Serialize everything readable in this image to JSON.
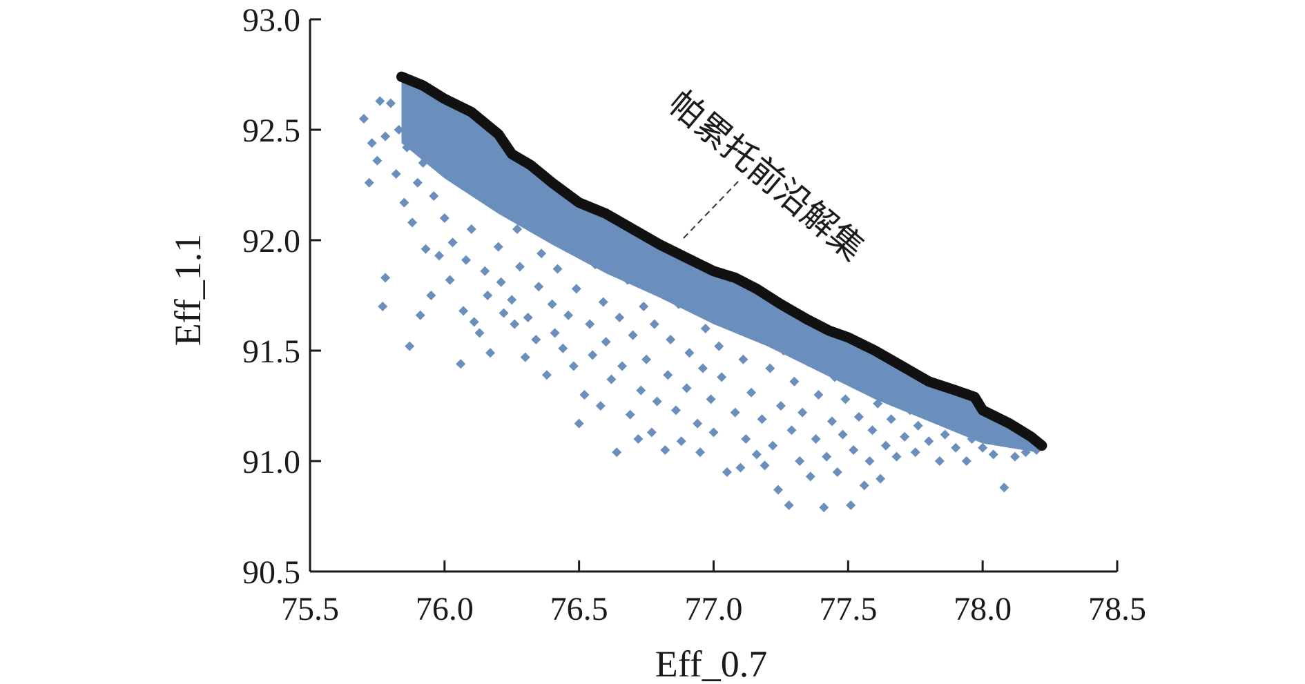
{
  "chart_data": {
    "type": "scatter",
    "xlabel": "Eff_0.7",
    "ylabel": "Eff_1.1",
    "xlim": [
      75.5,
      78.5
    ],
    "ylim": [
      90.5,
      93.0
    ],
    "xticks": [
      75.5,
      76.0,
      76.5,
      77.0,
      77.5,
      78.0,
      78.5
    ],
    "yticks": [
      90.5,
      91.0,
      91.5,
      92.0,
      92.5,
      93.0
    ],
    "xtick_labels": [
      "75.5",
      "76.0",
      "76.5",
      "77.0",
      "77.5",
      "78.0",
      "78.5"
    ],
    "ytick_labels": [
      "90.5",
      "91.0",
      "91.5",
      "92.0",
      "92.5",
      "93.0"
    ],
    "grid": false,
    "legend": "none",
    "annotation": "帕累托前沿解集",
    "colors": {
      "scatter": "#6b8fbd",
      "front": "#111111",
      "axis": "#1a1a1a"
    },
    "series": [
      {
        "kind": "scatter",
        "marker": "diamond",
        "points": [
          [
            75.7,
            92.55
          ],
          [
            75.72,
            92.26
          ],
          [
            75.73,
            92.44
          ],
          [
            75.75,
            92.36
          ],
          [
            75.76,
            92.63
          ],
          [
            75.77,
            91.7
          ],
          [
            75.78,
            91.83
          ],
          [
            75.78,
            92.47
          ],
          [
            75.8,
            92.62
          ],
          [
            75.82,
            92.3
          ],
          [
            75.83,
            92.5
          ],
          [
            75.85,
            92.17
          ],
          [
            75.86,
            92.42
          ],
          [
            75.87,
            91.52
          ],
          [
            75.88,
            92.08
          ],
          [
            75.9,
            92.26
          ],
          [
            75.91,
            91.66
          ],
          [
            75.92,
            92.35
          ],
          [
            75.93,
            91.96
          ],
          [
            75.95,
            91.75
          ],
          [
            75.96,
            92.2
          ],
          [
            75.98,
            91.93
          ],
          [
            75.99,
            92.47
          ],
          [
            76.0,
            92.1
          ],
          [
            76.02,
            91.82
          ],
          [
            76.03,
            91.99
          ],
          [
            76.05,
            92.3
          ],
          [
            76.06,
            91.44
          ],
          [
            76.07,
            91.68
          ],
          [
            76.08,
            91.91
          ],
          [
            76.1,
            92.05
          ],
          [
            76.11,
            91.63
          ],
          [
            76.12,
            92.38
          ],
          [
            76.13,
            91.58
          ],
          [
            76.15,
            91.86
          ],
          [
            76.16,
            91.75
          ],
          [
            76.17,
            91.49
          ],
          [
            76.18,
            92.18
          ],
          [
            76.2,
            91.97
          ],
          [
            76.21,
            91.81
          ],
          [
            76.22,
            91.67
          ],
          [
            76.23,
            92.27
          ],
          [
            76.25,
            91.73
          ],
          [
            76.26,
            91.62
          ],
          [
            76.27,
            92.05
          ],
          [
            76.28,
            91.88
          ],
          [
            76.3,
            91.47
          ],
          [
            76.31,
            91.65
          ],
          [
            76.32,
            92.15
          ],
          [
            76.34,
            91.55
          ],
          [
            76.35,
            91.79
          ],
          [
            76.36,
            91.94
          ],
          [
            76.38,
            91.39
          ],
          [
            76.39,
            92.2
          ],
          [
            76.4,
            91.71
          ],
          [
            76.41,
            91.58
          ],
          [
            76.42,
            91.87
          ],
          [
            76.44,
            91.51
          ],
          [
            76.45,
            92.03
          ],
          [
            76.46,
            91.66
          ],
          [
            76.48,
            91.43
          ],
          [
            76.49,
            91.78
          ],
          [
            76.5,
            91.17
          ],
          [
            76.51,
            92.0
          ],
          [
            76.52,
            91.3
          ],
          [
            76.54,
            91.62
          ],
          [
            76.55,
            91.48
          ],
          [
            76.56,
            91.89
          ],
          [
            76.58,
            91.25
          ],
          [
            76.59,
            91.72
          ],
          [
            76.6,
            91.54
          ],
          [
            76.61,
            91.97
          ],
          [
            76.62,
            91.37
          ],
          [
            76.64,
            91.04
          ],
          [
            76.65,
            91.65
          ],
          [
            76.66,
            91.43
          ],
          [
            76.68,
            91.82
          ],
          [
            76.69,
            91.21
          ],
          [
            76.7,
            91.57
          ],
          [
            76.72,
            91.1
          ],
          [
            76.73,
            91.32
          ],
          [
            76.74,
            91.7
          ],
          [
            76.75,
            91.46
          ],
          [
            76.77,
            91.13
          ],
          [
            76.78,
            91.62
          ],
          [
            76.79,
            91.27
          ],
          [
            76.8,
            91.84
          ],
          [
            76.82,
            91.05
          ],
          [
            76.83,
            91.39
          ],
          [
            76.84,
            91.55
          ],
          [
            76.86,
            91.23
          ],
          [
            76.87,
            91.71
          ],
          [
            76.88,
            91.09
          ],
          [
            76.9,
            91.33
          ],
          [
            76.91,
            91.49
          ],
          [
            76.92,
            91.76
          ],
          [
            76.94,
            91.17
          ],
          [
            76.95,
            91.04
          ],
          [
            76.96,
            91.42
          ],
          [
            76.97,
            91.6
          ],
          [
            76.99,
            91.28
          ],
          [
            77.0,
            91.13
          ],
          [
            77.02,
            91.52
          ],
          [
            77.03,
            91.38
          ],
          [
            77.05,
            90.95
          ],
          [
            77.06,
            91.66
          ],
          [
            77.08,
            91.22
          ],
          [
            77.1,
            90.97
          ],
          [
            77.11,
            91.46
          ],
          [
            77.12,
            91.1
          ],
          [
            77.14,
            91.31
          ],
          [
            77.15,
            91.57
          ],
          [
            77.16,
            91.03
          ],
          [
            77.18,
            91.19
          ],
          [
            77.19,
            90.98
          ],
          [
            77.21,
            91.42
          ],
          [
            77.22,
            91.07
          ],
          [
            77.24,
            90.87
          ],
          [
            77.25,
            91.25
          ],
          [
            77.26,
            91.5
          ],
          [
            77.28,
            90.8
          ],
          [
            77.29,
            91.14
          ],
          [
            77.3,
            91.36
          ],
          [
            77.32,
            91.0
          ],
          [
            77.33,
            91.22
          ],
          [
            77.35,
            91.45
          ],
          [
            77.36,
            90.93
          ],
          [
            77.38,
            91.1
          ],
          [
            77.39,
            91.3
          ],
          [
            77.41,
            90.79
          ],
          [
            77.42,
            91.02
          ],
          [
            77.44,
            91.18
          ],
          [
            77.45,
            91.38
          ],
          [
            77.46,
            90.95
          ],
          [
            77.48,
            91.12
          ],
          [
            77.49,
            91.28
          ],
          [
            77.51,
            90.8
          ],
          [
            77.52,
            91.05
          ],
          [
            77.54,
            91.2
          ],
          [
            77.55,
            91.34
          ],
          [
            77.56,
            90.89
          ],
          [
            77.58,
            91.0
          ],
          [
            77.59,
            91.14
          ],
          [
            77.61,
            91.26
          ],
          [
            77.62,
            90.92
          ],
          [
            77.64,
            91.07
          ],
          [
            77.66,
            91.19
          ],
          [
            77.68,
            91.02
          ],
          [
            77.69,
            91.3
          ],
          [
            77.71,
            91.11
          ],
          [
            77.73,
            91.23
          ],
          [
            77.75,
            91.04
          ],
          [
            77.76,
            91.16
          ],
          [
            77.78,
            91.27
          ],
          [
            77.8,
            91.09
          ],
          [
            77.82,
            91.2
          ],
          [
            77.84,
            91.0
          ],
          [
            77.86,
            91.12
          ],
          [
            77.88,
            91.24
          ],
          [
            77.9,
            91.06
          ],
          [
            77.92,
            91.16
          ],
          [
            77.94,
            91.0
          ],
          [
            77.96,
            91.1
          ],
          [
            77.98,
            91.19
          ],
          [
            78.0,
            91.06
          ],
          [
            78.02,
            91.14
          ],
          [
            78.04,
            91.03
          ],
          [
            78.06,
            91.11
          ],
          [
            78.08,
            90.88
          ],
          [
            78.1,
            91.08
          ],
          [
            78.12,
            91.02
          ],
          [
            78.14,
            91.1
          ],
          [
            78.16,
            91.04
          ],
          [
            78.18,
            91.07
          ],
          [
            78.2,
            91.05
          ]
        ]
      },
      {
        "kind": "front",
        "name": "帕累托前沿解集",
        "points": [
          [
            75.84,
            92.74
          ],
          [
            75.92,
            92.7
          ],
          [
            76.0,
            92.64
          ],
          [
            76.1,
            92.58
          ],
          [
            76.2,
            92.48
          ],
          [
            76.25,
            92.39
          ],
          [
            76.32,
            92.34
          ],
          [
            76.4,
            92.26
          ],
          [
            76.5,
            92.17
          ],
          [
            76.6,
            92.12
          ],
          [
            76.7,
            92.05
          ],
          [
            76.8,
            91.98
          ],
          [
            76.9,
            91.92
          ],
          [
            77.0,
            91.86
          ],
          [
            77.08,
            91.83
          ],
          [
            77.16,
            91.78
          ],
          [
            77.25,
            91.71
          ],
          [
            77.35,
            91.64
          ],
          [
            77.43,
            91.59
          ],
          [
            77.5,
            91.56
          ],
          [
            77.6,
            91.5
          ],
          [
            77.7,
            91.43
          ],
          [
            77.8,
            91.36
          ],
          [
            77.9,
            91.32
          ],
          [
            77.97,
            91.29
          ],
          [
            78.0,
            91.23
          ],
          [
            78.1,
            91.17
          ],
          [
            78.18,
            91.11
          ],
          [
            78.22,
            91.07
          ]
        ]
      }
    ]
  }
}
